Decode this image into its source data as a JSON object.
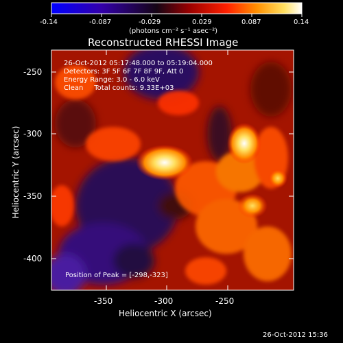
{
  "colorbar": {
    "tick_labels": [
      "-0.14",
      "-0.087",
      "-0.029",
      "0.029",
      "0.087",
      "0.14"
    ],
    "unit_label": "(photons cm⁻² s⁻¹ asec⁻²)",
    "colors": [
      "#0000ff",
      "#2a00a8",
      "#1a0a1a",
      "#8a0000",
      "#ff2000",
      "#ff8c00",
      "#ffe050",
      "#ffffff"
    ]
  },
  "plot": {
    "title": "Reconstructed RHESSI Image",
    "x_label": "Heliocentric X (arcsec)",
    "y_label": "Heliocentric Y (arcsec)",
    "x_ticks": [
      "-350",
      "-300",
      "-250"
    ],
    "y_ticks": [
      "-250",
      "-300",
      "-350",
      "-400"
    ],
    "annotations": [
      "26-Oct-2012 05:17:48.000 to 05:19:04.000",
      "Detectors: 3F 5F 6F 7F 8F 9F, Att 0",
      "Energy Range: 3.0 - 6.0 keV",
      "Clean     Total counts: 9.33E+03"
    ],
    "peak_label": "Position of Peak = [-298,-323]"
  },
  "timestamp": "26-Oct-2012 15:36"
}
